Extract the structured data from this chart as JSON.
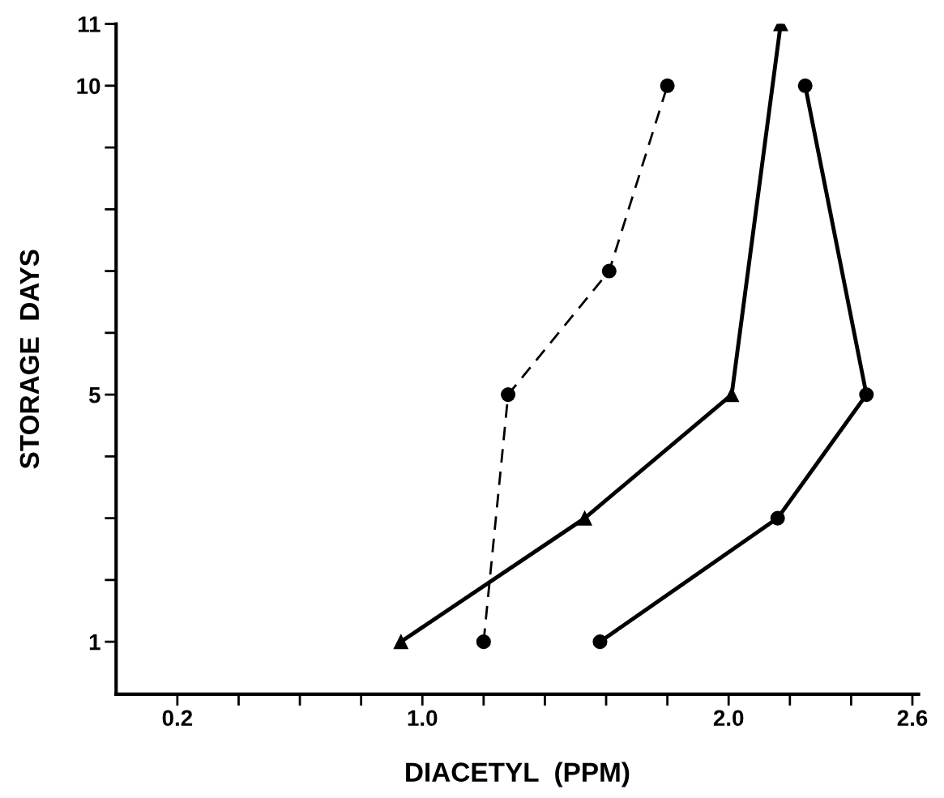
{
  "chart_data": {
    "type": "line",
    "xlabel": "DIACETYL  (PPM)",
    "ylabel": "STORAGE  DAYS",
    "xlim": [
      0,
      2.62
    ],
    "ylim": [
      0.15,
      11
    ],
    "xticks": [
      {
        "value": 0.2,
        "label": "0.2"
      },
      {
        "value": 0.4,
        "label": null
      },
      {
        "value": 0.6,
        "label": null
      },
      {
        "value": 0.8,
        "label": null
      },
      {
        "value": 1.0,
        "label": "1.0"
      },
      {
        "value": 1.2,
        "label": null
      },
      {
        "value": 1.4,
        "label": null
      },
      {
        "value": 1.6,
        "label": null
      },
      {
        "value": 1.8,
        "label": null
      },
      {
        "value": 2.0,
        "label": "2.0"
      },
      {
        "value": 2.2,
        "label": null
      },
      {
        "value": 2.4,
        "label": null
      },
      {
        "value": 2.6,
        "label": "2.6"
      }
    ],
    "yticks": [
      1,
      {
        "value": 2,
        "label": null
      },
      {
        "value": 3,
        "label": null
      },
      {
        "value": 4,
        "label": null
      },
      5,
      {
        "value": 6,
        "label": null
      },
      {
        "value": 7,
        "label": null
      },
      {
        "value": 8,
        "label": null
      },
      {
        "value": 9,
        "label": null
      },
      10,
      11
    ],
    "grid": false,
    "legend": false,
    "series": [
      {
        "color": "#000000",
        "marker": "circle",
        "line_style": "dashed",
        "x": [
          1.2,
          1.28,
          1.61,
          1.8
        ],
        "values": [
          1,
          5,
          7,
          10
        ]
      },
      {
        "color": "#000000",
        "marker": "triangle",
        "line_style": "solid",
        "x": [
          0.93,
          1.53,
          2.01,
          2.17
        ],
        "values": [
          1,
          3,
          5,
          11
        ]
      },
      {
        "color": "#000000",
        "marker": "circle",
        "line_style": "solid",
        "x": [
          1.58,
          2.16,
          2.45,
          2.25
        ],
        "values": [
          1,
          3,
          5,
          10
        ]
      }
    ]
  }
}
